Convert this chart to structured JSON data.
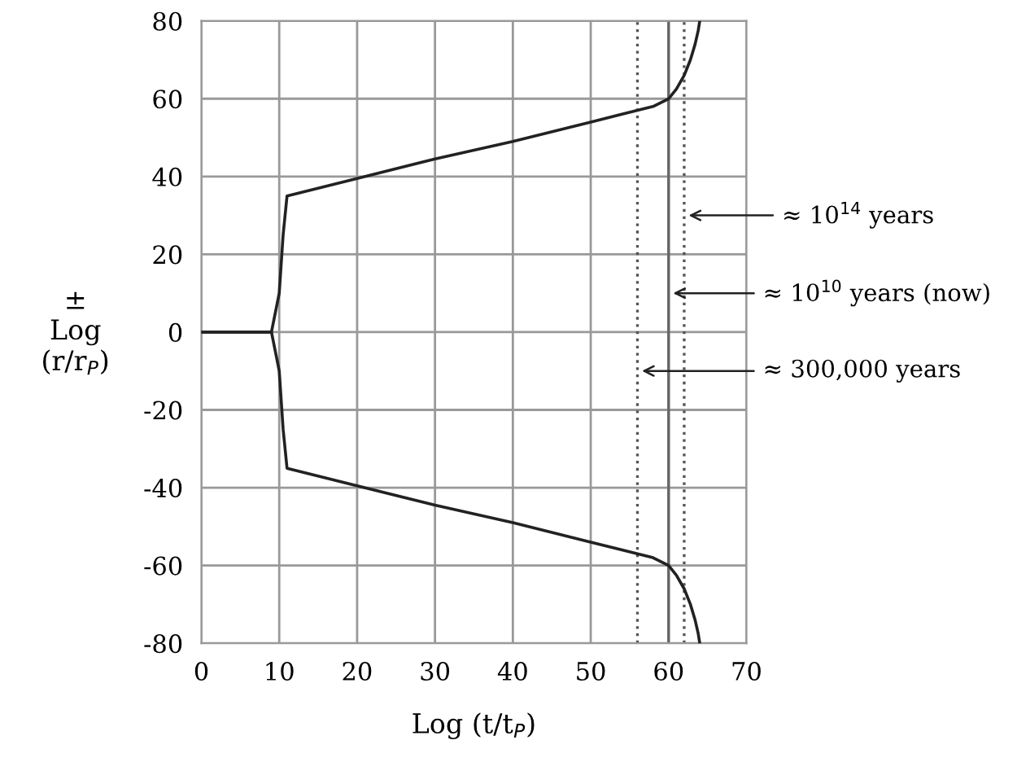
{
  "chart_data": {
    "type": "line",
    "xlabel": "Log (t/t$_{P}$)",
    "ylabel": "±\nLog\n(r/r$_{P}$)",
    "xlim": [
      0,
      70
    ],
    "ylim": [
      -80,
      80
    ],
    "xticks": [
      0,
      10,
      20,
      30,
      40,
      50,
      60,
      70
    ],
    "yticks": [
      -80,
      -60,
      -40,
      -20,
      0,
      20,
      40,
      60,
      80
    ],
    "grid": true,
    "marker": "none",
    "line_style": "solid",
    "series": [
      {
        "color": "#222222",
        "x": [
          0,
          9,
          10,
          10.5,
          11,
          20,
          30,
          40,
          50,
          56,
          58,
          60,
          61,
          62,
          62.8,
          63.4,
          63.8,
          64
        ],
        "values": [
          0,
          0,
          10,
          25,
          35,
          39.5,
          44.5,
          49,
          54,
          57,
          58,
          60,
          62.5,
          66,
          70,
          74,
          77.5,
          80
        ]
      },
      {
        "color": "#222222",
        "x": [
          0,
          9,
          10,
          10.5,
          11,
          20,
          30,
          40,
          50,
          56,
          58,
          60,
          61,
          62,
          62.8,
          63.4,
          63.8,
          64
        ],
        "values": [
          0,
          0,
          -10,
          -25,
          -35,
          -39.5,
          -44.5,
          -49,
          -54,
          -57,
          -58,
          -60,
          -62.5,
          -66,
          -70,
          -74,
          -77.5,
          -80
        ]
      }
    ],
    "ref_lines": [
      {
        "axis": "x",
        "value": 62,
        "color": "#555555",
        "line_style": "dotted",
        "label": "≈ 10$^{14}$ years"
      },
      {
        "axis": "x",
        "value": 60,
        "color": "#666666",
        "line_style": "solid",
        "label": "≈ 10$^{10}$ years (now)"
      },
      {
        "axis": "x",
        "value": 56,
        "color": "#555555",
        "line_style": "dotted",
        "label": "≈ 300,000 years"
      }
    ]
  }
}
